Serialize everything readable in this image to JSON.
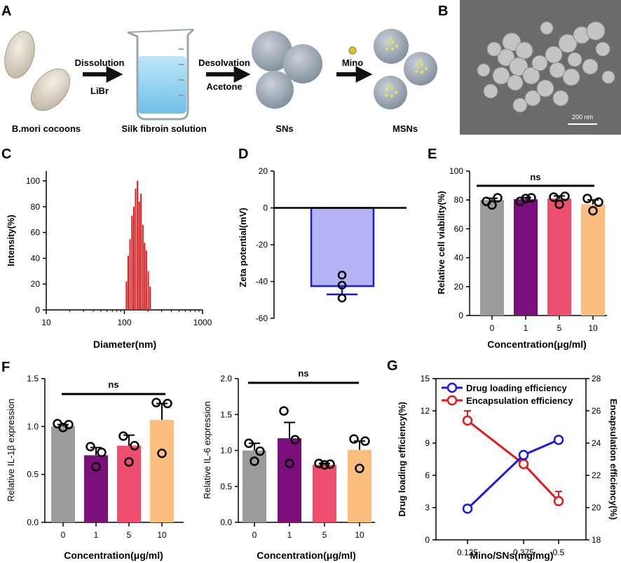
{
  "colors": {
    "gray": "#9b9b9b",
    "purple": "#7a0f7c",
    "pink": "#ee4f6e",
    "orange": "#fbbe7e",
    "red": "#e31a1c",
    "blue": "#1a18e6",
    "zeta_fill": "#b2b2f5"
  },
  "panel_a": {
    "label": "A",
    "steps": [
      {
        "caption": "B.mori cocoons"
      },
      {
        "arrow_top": "Dissolution",
        "arrow_bottom": "LiBr",
        "caption": "Silk fibroin solution"
      },
      {
        "arrow_top": "Desolvation",
        "arrow_bottom": "Acetone",
        "caption": "SNs"
      },
      {
        "arrow_top": "Mino",
        "arrow_bottom": "",
        "caption": "MSNs"
      }
    ]
  },
  "panel_b": {
    "label": "B",
    "scale_bar": "200 nm"
  },
  "chart_data": [
    {
      "panel": "C",
      "type": "bar",
      "xscale": "log",
      "xlabel": "Diameter(nm)",
      "ylabel": "Intensity(%)",
      "xlim": [
        10,
        1000
      ],
      "ylim": [
        0,
        100
      ],
      "xticks": [
        "10",
        "100",
        "1000"
      ],
      "yticks": [
        "0",
        "20",
        "40",
        "60",
        "80",
        "100"
      ],
      "x": [
        106,
        112,
        118,
        125,
        132,
        139,
        147,
        155,
        163,
        172,
        181,
        191,
        202,
        213
      ],
      "values": [
        22,
        42,
        55,
        73,
        80,
        94,
        100,
        84,
        90,
        66,
        52,
        46,
        30,
        18
      ]
    },
    {
      "panel": "D",
      "type": "bar",
      "ylabel": "Zeta potential(mV)",
      "ylim": [
        -60,
        20
      ],
      "yticks": [
        "20",
        "0",
        "-20",
        "-40",
        "-60"
      ],
      "values": [
        -42.5
      ],
      "sem": 4.5,
      "points": [
        -36.5,
        -42,
        -49
      ]
    },
    {
      "panel": "E",
      "type": "bar",
      "xlabel": "Concentration(μg/ml)",
      "ylabel": "Relative cell viability(%)",
      "ylim": [
        0,
        100
      ],
      "yticks": [
        "0",
        "20",
        "40",
        "60",
        "80",
        "100"
      ],
      "categories": [
        "0",
        "1",
        "5",
        "10"
      ],
      "values": [
        80,
        80.5,
        81,
        77
      ],
      "sem": [
        1.2,
        1.2,
        1.8,
        3
      ],
      "points": [
        [
          79,
          81.5,
          76.5
        ],
        [
          79,
          81.5,
          81
        ],
        [
          82,
          82.5,
          77
        ],
        [
          81,
          78.5,
          72.5
        ]
      ],
      "significance": "ns"
    },
    {
      "panel": "F",
      "type": "bar",
      "xlabel": "Concentration(μg/ml)",
      "ylabel": "Relative IL-1β expression",
      "ylim": [
        0,
        1.5
      ],
      "yticks": [
        "0.0",
        "0.5",
        "1.0",
        "1.5"
      ],
      "categories": [
        "0",
        "1",
        "5",
        "10"
      ],
      "values": [
        1.0,
        0.7,
        0.8,
        1.07
      ],
      "sem": [
        0.02,
        0.08,
        0.11,
        0.17
      ],
      "points": [
        [
          1.03,
          1.02,
          0.99
        ],
        [
          0.79,
          0.73,
          0.58
        ],
        [
          0.9,
          0.8,
          0.63
        ],
        [
          1.25,
          1.24,
          0.72
        ]
      ],
      "significance": "ns"
    },
    {
      "panel": "F2",
      "type": "bar",
      "xlabel": "Concentration(μg/ml)",
      "ylabel": "Relative IL-6 expression",
      "ylim": [
        0,
        2.0
      ],
      "yticks": [
        "0.0",
        "0.5",
        "1.0",
        "1.5",
        "2.0"
      ],
      "categories": [
        "0",
        "1",
        "5",
        "10"
      ],
      "values": [
        1.0,
        1.17,
        0.8,
        1.01
      ],
      "sem": [
        0.1,
        0.22,
        0.02,
        0.12
      ],
      "points": [
        [
          1.1,
          0.99,
          0.85
        ],
        [
          1.55,
          1.15,
          0.82
        ],
        [
          0.82,
          0.81,
          0.8
        ],
        [
          1.16,
          1.13,
          0.75
        ]
      ],
      "significance": "ns"
    },
    {
      "panel": "G",
      "type": "line",
      "xlabel": "Mino/SNs(mg/mg)",
      "ylabel": "Drug loading efficiency(%)",
      "ylim": [
        0,
        15
      ],
      "yticks": [
        "0",
        "3",
        "6",
        "9",
        "12",
        "15"
      ],
      "ylabel_right": "Encapsulation efficiency(%)",
      "ylim_right": [
        18,
        28
      ],
      "yticks_right": [
        "18",
        "20",
        "22",
        "24",
        "26",
        "28"
      ],
      "categories": [
        "0.125",
        "0.375",
        "0.5"
      ],
      "series": [
        {
          "name": "Drug loading efficiency",
          "axis": "left",
          "values": [
            2.9,
            7.9,
            9.3
          ]
        },
        {
          "name": "Encapsulation efficiency",
          "axis": "right",
          "values": [
            25.4,
            22.7,
            20.4
          ]
        }
      ]
    }
  ]
}
